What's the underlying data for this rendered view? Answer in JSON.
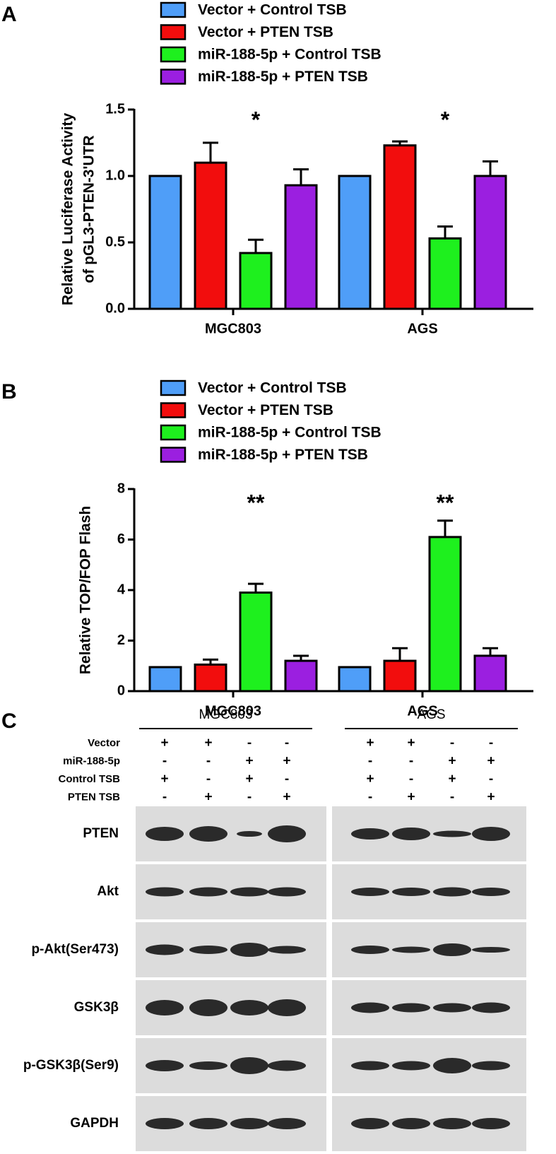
{
  "panel_labels": [
    "A",
    "B",
    "C"
  ],
  "chart_data": [
    {
      "type": "bar",
      "categories": [
        "MGC803",
        "AGS"
      ],
      "ylabel": [
        "Relative Luciferase Activity",
        "of pGL3-PTEN-3'UTR"
      ],
      "series": [
        {
          "name": "Vector + Control TSB",
          "color": "#4f9ef8",
          "values": [
            1.0,
            1.0
          ],
          "errors": [
            0,
            0
          ]
        },
        {
          "name": "Vector + PTEN TSB",
          "color": "#f20d0d",
          "values": [
            1.1,
            1.23
          ],
          "errors": [
            0.15,
            0.03
          ]
        },
        {
          "name": "miR-188-5p + Control TSB",
          "color": "#1ef01e",
          "values": [
            0.42,
            0.53
          ],
          "errors": [
            0.1,
            0.09
          ]
        },
        {
          "name": "miR-188-5p + PTEN TSB",
          "color": "#9b1fe0",
          "values": [
            0.93,
            1.0
          ],
          "errors": [
            0.12,
            0.11
          ]
        }
      ],
      "annotations": [
        "*",
        "*"
      ],
      "ylim": [
        0,
        1.5
      ],
      "yticks": [
        {
          "value": 0,
          "label": "0.0"
        },
        {
          "value": 0.5,
          "label": "0.5"
        },
        {
          "value": 1,
          "label": "1.0"
        },
        {
          "value": 1.5,
          "label": "1.5"
        }
      ]
    },
    {
      "type": "bar",
      "categories": [
        "MGC803",
        "AGS"
      ],
      "ylabel": [
        "Relative TOP/FOP Flash"
      ],
      "series": [
        {
          "name": "Vector + Control TSB",
          "color": "#4f9ef8",
          "values": [
            0.95,
            0.95
          ],
          "errors": [
            0,
            0
          ]
        },
        {
          "name": "Vector + PTEN TSB",
          "color": "#f20d0d",
          "values": [
            1.05,
            1.2
          ],
          "errors": [
            0.2,
            0.5
          ]
        },
        {
          "name": "miR-188-5p + Control TSB",
          "color": "#1ef01e",
          "values": [
            3.9,
            6.1
          ],
          "errors": [
            0.35,
            0.65
          ]
        },
        {
          "name": "miR-188-5p + PTEN TSB",
          "color": "#9b1fe0",
          "values": [
            1.2,
            1.4
          ],
          "errors": [
            0.2,
            0.3
          ]
        }
      ],
      "annotations": [
        "**",
        "**"
      ],
      "ylim": [
        0,
        8
      ],
      "yticks": [
        0,
        2,
        4,
        6,
        8
      ]
    }
  ],
  "blot": {
    "groups": [
      "MGC803",
      "AGS"
    ],
    "conditions": [
      {
        "label": "Vector",
        "signs": [
          "+",
          "+",
          "-",
          "-",
          "+",
          "+",
          "-",
          "-"
        ]
      },
      {
        "label": "miR-188-5p",
        "signs": [
          "-",
          "-",
          "+",
          "+",
          "-",
          "-",
          "+",
          "+"
        ]
      },
      {
        "label": "Control TSB",
        "signs": [
          "+",
          "-",
          "+",
          "-",
          "+",
          "-",
          "+",
          "-"
        ]
      },
      {
        "label": "PTEN TSB",
        "signs": [
          "-",
          "+",
          "-",
          "+",
          "-",
          "+",
          "-",
          "+"
        ]
      }
    ],
    "proteins": [
      "PTEN",
      "Akt",
      "p-Akt(Ser473)",
      "GSK3β",
      "p-GSK3β(Ser9)",
      "GAPDH"
    ]
  }
}
